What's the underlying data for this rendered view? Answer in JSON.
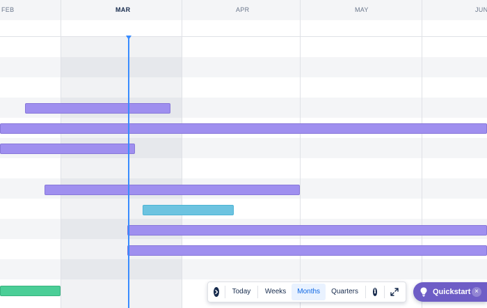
{
  "timeline": {
    "months": [
      {
        "label": "FEB",
        "current": false
      },
      {
        "label": "MAR",
        "current": true
      },
      {
        "label": "APR",
        "current": false
      },
      {
        "label": "MAY",
        "current": false
      },
      {
        "label": "JUN",
        "current": false
      }
    ]
  },
  "colors": {
    "bar_purple": "#9f8fef",
    "bar_teal": "#6cc3e0",
    "bar_green": "#4bce97",
    "today_marker": "#388bff",
    "quickstart_bg": "#6e5dc6"
  },
  "toolbar": {
    "collapse_icon": "chevron-right-icon",
    "today_label": "Today",
    "weeks_label": "Weeks",
    "months_label": "Months",
    "quarters_label": "Quarters",
    "selected": "Months",
    "info_icon": "info-icon",
    "expand_icon": "fullscreen-icon"
  },
  "quickstart": {
    "label": "Quickstart",
    "icon": "lightbulb-icon",
    "close_label": "×"
  }
}
